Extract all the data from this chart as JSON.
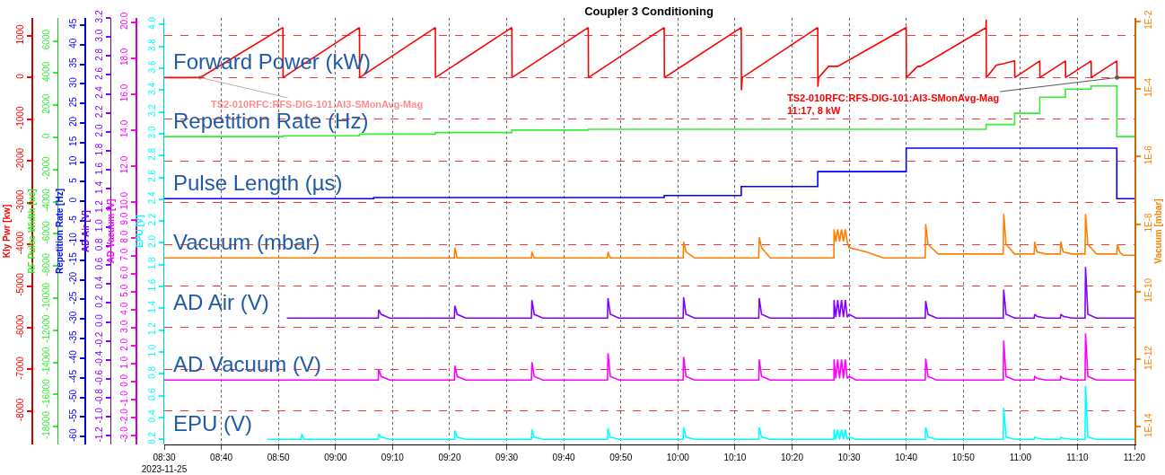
{
  "chart_data": [
    {
      "type": "line",
      "title": "Coupler 3 Conditioning",
      "grid": true,
      "xlim": [
        8.5,
        11.3333
      ],
      "xticks": [
        {
          "value": 8.5,
          "label": "08:30\n2023-11-25"
        },
        {
          "value": 8.6667,
          "label": "08:40"
        },
        {
          "value": 8.8333,
          "label": "08:50"
        },
        {
          "value": 9,
          "label": "09:00"
        },
        {
          "value": 9.1667,
          "label": "09:10"
        },
        {
          "value": 9.3333,
          "label": "09:20"
        },
        {
          "value": 9.5,
          "label": "09:30"
        },
        {
          "value": 9.6667,
          "label": "09:40"
        },
        {
          "value": 9.8333,
          "label": "09:50"
        },
        {
          "value": 10,
          "label": "10:00"
        },
        {
          "value": 10.1667,
          "label": "10:10"
        },
        {
          "value": 10.3333,
          "label": "10:20"
        },
        {
          "value": 10.5,
          "label": "10:30"
        },
        {
          "value": 10.6667,
          "label": "10:40"
        },
        {
          "value": 10.8333,
          "label": "10:50"
        },
        {
          "value": 11,
          "label": "11:00"
        },
        {
          "value": 11.1667,
          "label": "11:10"
        },
        {
          "value": 11.3333,
          "label": "11:20"
        }
      ],
      "ylabel": "Kly Pwr [kw]",
      "ylim": [
        -8800,
        1430
      ],
      "yticks": [
        1000,
        0,
        -1000,
        -2000,
        -3000,
        -4000,
        -5000,
        -6000,
        -7000,
        -8000
      ],
      "y2label": "Vacuum [mbar]",
      "y2lim": [
        3e-15,
        0.0126
      ],
      "y2ticks": [
        {
          "value": 0.01,
          "label": "1E-2"
        },
        {
          "value": 0.0001,
          "label": "1E-4"
        },
        {
          "value": 1e-06,
          "label": "1E-6"
        },
        {
          "value": 1e-08,
          "label": "1E-8"
        },
        {
          "value": 1e-10,
          "label": "1E-10"
        },
        {
          "value": 1e-12,
          "label": "1E-12"
        },
        {
          "value": 1e-14,
          "label": "1E-14"
        }
      ],
      "log": "y2",
      "annotations": [
        {
          "text": "TS2-010RFC:RFS-DIG-101:AI3-SMonAvg-Mag",
          "x": 8.605,
          "y": 0
        },
        {
          "text": "TS2-010RFC:RFS-DIG-101:AI3-SMonAvg-Mag\n11:17, 8 kW",
          "x": 11.2822,
          "y": 0
        }
      ],
      "series": [
        {
          "name": "Forward Power (kW)",
          "color": "#ff0000",
          "x": [
            8.5,
            8.605,
            8.8467,
            8.847,
            9.07,
            9.0705,
            9.2917,
            9.292,
            9.515,
            9.5155,
            9.7383,
            9.7388,
            9.96,
            9.9605,
            10.185,
            10.1855,
            10.188,
            10.4083,
            10.4088,
            10.411,
            10.44,
            10.4667,
            10.6667,
            10.6672,
            10.7,
            10.7083,
            10.9,
            10.9003,
            10.9008,
            10.93,
            10.95,
            10.9833,
            10.9838,
            11.0567,
            11.0572,
            11.1317,
            11.1322,
            11.2067,
            11.2072,
            11.2817,
            11.2822,
            11.3333
          ],
          "values": [
            0,
            0,
            1200,
            0,
            1200,
            0,
            1200,
            0,
            1200,
            0,
            1200,
            0,
            1200,
            0,
            1200,
            -300,
            0,
            1200,
            -220,
            0,
            270,
            270,
            1200,
            0,
            270,
            270,
            1200,
            1390,
            0,
            300,
            330,
            400,
            0,
            400,
            0,
            400,
            0,
            400,
            0,
            400,
            0,
            0
          ]
        },
        {
          "name": "Vacuum (mbar)",
          "color": "#ff8000",
          "axis": "y2",
          "x": [
            8.5,
            9.3472,
            9.3486,
            9.3555,
            9.3805,
            9.5722,
            9.5736,
            9.5805,
            9.6055,
            9.7944,
            9.7958,
            9.8027,
            9.8277,
            10.0153,
            10.0167,
            10.0236,
            10.0486,
            10.2361,
            10.2375,
            10.2444,
            10.2694,
            10.4556,
            10.456,
            10.4611,
            10.4667,
            10.4722,
            10.4778,
            10.4833,
            10.4889,
            10.4944,
            10.5,
            10.55,
            10.6,
            10.7222,
            10.7236,
            10.7305,
            10.76,
            10.95,
            10.9514,
            10.9583,
            10.9833,
            11.0403,
            11.0417,
            11.0486,
            11.0736,
            11.1167,
            11.1181,
            11.125,
            11.15,
            11.1889,
            11.1903,
            11.1972,
            11.2222,
            11.2817,
            11.2831,
            11.29,
            11.3,
            11.3333
          ],
          "values": [
            1e-09,
            1e-09,
            2e-09,
            1e-09,
            1e-09,
            1e-09,
            1.5e-09,
            1e-09,
            1e-09,
            1e-09,
            1.5e-09,
            1e-09,
            1e-09,
            1e-09,
            3e-09,
            1.5e-09,
            1e-09,
            1e-09,
            4e-09,
            2e-09,
            1e-09,
            1e-09,
            7e-09,
            3e-09,
            7e-09,
            3e-09,
            7e-09,
            3e-09,
            7e-09,
            3e-09,
            2e-09,
            1.5e-09,
            1e-09,
            1e-09,
            1e-08,
            2.5e-09,
            1.3e-09,
            1.3e-09,
            2e-08,
            2.5e-09,
            1.3e-09,
            1.3e-09,
            3e-09,
            1.5e-09,
            1.3e-09,
            1.3e-09,
            3e-09,
            1.5e-09,
            1.3e-09,
            1.3e-09,
            2e-08,
            2.5e-09,
            1.3e-09,
            1.3e-09,
            2.5e-09,
            1.5e-09,
            1.2e-09,
            1.2e-09
          ]
        }
      ]
    },
    {
      "type": "line",
      "xlim": [
        8.5,
        11.3333
      ],
      "tick_labels": "y",
      "ylabel": "RF Pulse Width [us]",
      "ylim": [
        -19110,
        7430
      ],
      "yticks": [
        6000,
        4000,
        2000,
        0,
        -2000,
        -4000,
        -6000,
        -8000,
        -10000,
        -12000,
        -14000,
        -16000,
        -18000
      ],
      "series": [
        {
          "name": "Repetition Rate (Hz)",
          "type": "step",
          "color": "#33ee33",
          "x": [
            8.5,
            8.847,
            9.07,
            9.2917,
            9.515,
            9.7383,
            10.9,
            10.9833,
            11.0567,
            11.1317,
            11.2067,
            11.2817,
            11.3333
          ],
          "values": [
            50,
            100,
            200,
            300,
            450,
            500,
            800,
            1500,
            2500,
            3000,
            3200,
            50,
            50
          ]
        }
      ]
    },
    {
      "type": "line",
      "xlim": [
        8.5,
        11.3333
      ],
      "tick_labels": "y",
      "ylabel": "Repetition Rate [Hz]",
      "ylim": [
        -62,
        46.8
      ],
      "yticks": [
        45,
        40,
        35,
        30,
        25,
        20,
        15,
        10,
        5,
        0,
        -5,
        -10,
        -15,
        -20,
        -25,
        -30,
        -35,
        -40,
        -45,
        -50,
        -55,
        -60
      ],
      "series": [
        {
          "name": "Pulse Length (µs)",
          "type": "step",
          "color": "#0000ff",
          "x": [
            8.5,
            9.1117,
            9.96,
            10.185,
            10.4083,
            10.6667,
            11.2817,
            11.3333
          ],
          "values": [
            0.7,
            1,
            1.5,
            3.8,
            7.6,
            13.6,
            0.7,
            0.7
          ]
        }
      ]
    },
    {
      "type": "line",
      "xlim": [
        8.5,
        11.3333
      ],
      "tick_labels": "y",
      "ylabel": "AD Air [V]",
      "ylim": [
        -1.29,
        3.2
      ],
      "yticks": [
        3.2,
        {
          "value": 3,
          "label": "3.0"
        },
        2.8,
        2.6,
        2.4,
        2.2,
        {
          "value": 2,
          "label": "2.0"
        },
        1.8,
        1.6,
        1.4,
        1.2,
        {
          "value": 1,
          "label": "1.0"
        },
        0.8,
        0.6,
        0.4,
        0.2,
        {
          "value": 0,
          "label": "0.0"
        },
        -0.2,
        -0.4,
        -0.6,
        -0.8,
        {
          "value": -1,
          "label": "-1.0"
        },
        -1.2
      ],
      "series": [
        {
          "name": "AD Air (V)",
          "color": "#8000ff",
          "x": [
            8.858,
            9.125,
            9.1264,
            9.1333,
            9.1583,
            9.3472,
            9.3486,
            9.3555,
            9.3805,
            9.5722,
            9.5736,
            9.5805,
            9.6055,
            9.7944,
            9.7958,
            9.8027,
            9.8277,
            10.0153,
            10.0167,
            10.0236,
            10.0486,
            10.2361,
            10.2375,
            10.2444,
            10.2694,
            10.4556,
            10.456,
            10.4611,
            10.4667,
            10.4722,
            10.4778,
            10.4833,
            10.4889,
            10.4944,
            10.5,
            10.52,
            10.7222,
            10.7236,
            10.7305,
            10.7555,
            10.95,
            10.9514,
            10.9583,
            10.9833,
            11.0403,
            11.0417,
            11.0486,
            11.0736,
            11.1167,
            11.1181,
            11.125,
            11.15,
            11.1889,
            11.1903,
            11.1972,
            11.2222,
            11.3333
          ],
          "values": [
            0.04,
            0.04,
            0.13,
            0.08,
            0.04,
            0.04,
            0.17,
            0.08,
            0.04,
            0.04,
            0.23,
            0.08,
            0.04,
            0.04,
            0.25,
            0.08,
            0.04,
            0.04,
            0.26,
            0.08,
            0.04,
            0.04,
            0.25,
            0.08,
            0.04,
            0.04,
            0.23,
            0.05,
            0.23,
            0.05,
            0.23,
            0.05,
            0.23,
            0.05,
            0.08,
            0.04,
            0.04,
            0.22,
            0.08,
            0.04,
            0.04,
            0.34,
            0.08,
            0.04,
            0.04,
            0.08,
            0.06,
            0.04,
            0.04,
            0.08,
            0.06,
            0.04,
            0.04,
            0.58,
            0.08,
            0.04,
            0.04
          ]
        }
      ]
    },
    {
      "type": "line",
      "xlim": [
        8.5,
        11.3333
      ],
      "tick_labels": "y",
      "ylabel": "AD Vacuum [V]",
      "ylim": [
        -3.48,
        20.24
      ],
      "yticks": [
        {
          "value": 20,
          "label": "20.0"
        },
        {
          "value": 18,
          "label": "18.0"
        },
        {
          "value": 16,
          "label": "16.0"
        },
        {
          "value": 14,
          "label": "14.0"
        },
        {
          "value": 12,
          "label": "12.0"
        },
        {
          "value": 10,
          "label": "10.0"
        },
        {
          "value": 9,
          "label": "9.0"
        },
        {
          "value": 8,
          "label": "8.0"
        },
        {
          "value": 7,
          "label": "7.0"
        },
        {
          "value": 6,
          "label": "6.0"
        },
        {
          "value": 5,
          "label": "5.0"
        },
        {
          "value": 4,
          "label": "4.0"
        },
        {
          "value": 3,
          "label": "3.0"
        },
        {
          "value": 2,
          "label": "2.0"
        },
        {
          "value": 1,
          "label": "1.0"
        },
        {
          "value": 0,
          "label": "0.0"
        },
        {
          "value": -1,
          "label": "-1.0"
        },
        {
          "value": -2,
          "label": "-2.0"
        },
        {
          "value": -3,
          "label": "-3.0"
        }
      ],
      "series": [
        {
          "name": "AD Vacuum (V)",
          "color": "#ff00ff",
          "x": [
            8.5,
            9.125,
            9.1264,
            9.1333,
            9.1583,
            9.3472,
            9.3486,
            9.3555,
            9.3805,
            9.5722,
            9.5736,
            9.5805,
            9.6055,
            9.7944,
            9.7958,
            9.8027,
            9.8277,
            10.0153,
            10.0167,
            10.0236,
            10.0486,
            10.2361,
            10.2375,
            10.2444,
            10.2694,
            10.4556,
            10.456,
            10.4611,
            10.4667,
            10.4722,
            10.4778,
            10.4833,
            10.4889,
            10.4944,
            10.5,
            10.52,
            10.7222,
            10.7236,
            10.7305,
            10.7555,
            10.95,
            10.9514,
            10.9583,
            10.9833,
            11.0403,
            11.0417,
            11.0486,
            11.0736,
            11.1167,
            11.1181,
            11.125,
            11.15,
            11.1889,
            11.1903,
            11.1972,
            11.2222,
            11.3333
          ],
          "values": [
            0.1,
            0.1,
            0.7,
            0.3,
            0.1,
            0.1,
            0.9,
            0.3,
            0.1,
            0.1,
            1.1,
            0.3,
            0.1,
            0.1,
            1.6,
            0.3,
            0.1,
            0.1,
            1.4,
            0.3,
            0.1,
            0.1,
            1.25,
            0.3,
            0.1,
            0.1,
            1.25,
            0.2,
            1.25,
            0.2,
            1.25,
            0.2,
            1.25,
            0.2,
            0.3,
            0.1,
            0.1,
            1.3,
            0.3,
            0.1,
            0.1,
            2.3,
            0.3,
            0.1,
            0.1,
            0.3,
            0.2,
            0.1,
            0.1,
            0.3,
            0.2,
            0.1,
            0.1,
            2.7,
            0.3,
            0.1,
            0.1
          ]
        }
      ]
    },
    {
      "type": "line",
      "xlim": [
        8.5,
        11.3333
      ],
      "tick_labels": "y",
      "ylabel": "EPU [V]",
      "ylim": [
        0.153,
        4.06
      ],
      "yticks": [
        {
          "value": 4,
          "label": "4.0"
        },
        3.8,
        3.6,
        3.4,
        3.2,
        {
          "value": 3,
          "label": "3.0"
        },
        2.8,
        2.6,
        2.4,
        2.2,
        {
          "value": 2,
          "label": "2.0"
        },
        1.8,
        1.6,
        1.4,
        1.2,
        {
          "value": 1,
          "label": "1.0"
        },
        0.8,
        0.6,
        0.4,
        0.2
      ],
      "series": [
        {
          "name": "EPU (V)",
          "color": "#00ffff",
          "x": [
            8.8,
            8.9,
            8.9014,
            8.9083,
            9.125,
            9.1264,
            9.1333,
            9.1583,
            9.3472,
            9.3486,
            9.3555,
            9.3805,
            9.5722,
            9.5736,
            9.5805,
            9.6055,
            9.7944,
            9.7958,
            9.8027,
            9.8277,
            10.0153,
            10.0167,
            10.0236,
            10.0486,
            10.2361,
            10.2375,
            10.2444,
            10.2694,
            10.4556,
            10.456,
            10.4611,
            10.4667,
            10.4722,
            10.4778,
            10.4833,
            10.4889,
            10.4944,
            10.5,
            10.52,
            10.7222,
            10.7236,
            10.7305,
            10.7555,
            10.95,
            10.9514,
            10.9583,
            10.9833,
            11.0403,
            11.0417,
            11.0486,
            11.0736,
            11.1167,
            11.1181,
            11.125,
            11.15,
            11.1889,
            11.1903,
            11.1972,
            11.2222,
            11.3333
          ],
          "values": [
            0.2,
            0.2,
            0.25,
            0.2,
            0.2,
            0.25,
            0.22,
            0.2,
            0.2,
            0.28,
            0.22,
            0.2,
            0.2,
            0.29,
            0.22,
            0.2,
            0.2,
            0.3,
            0.22,
            0.2,
            0.2,
            0.31,
            0.22,
            0.2,
            0.2,
            0.31,
            0.22,
            0.2,
            0.2,
            0.29,
            0.2,
            0.29,
            0.2,
            0.29,
            0.2,
            0.29,
            0.2,
            0.22,
            0.2,
            0.2,
            0.31,
            0.22,
            0.2,
            0.2,
            0.49,
            0.22,
            0.2,
            0.2,
            0.22,
            0.21,
            0.2,
            0.2,
            0.22,
            0.21,
            0.2,
            0.2,
            0.69,
            0.22,
            0.2,
            0.2
          ]
        }
      ]
    }
  ]
}
